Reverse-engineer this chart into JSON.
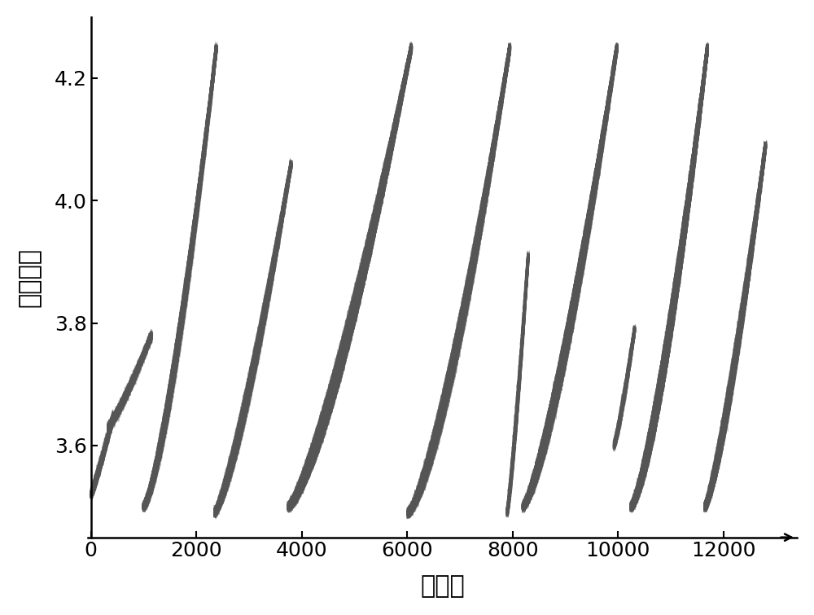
{
  "xlabel": "采样点",
  "ylabel": "充电电压",
  "xlabel_fontsize": 22,
  "ylabel_fontsize": 22,
  "tick_fontsize": 18,
  "xlim": [
    0,
    13000
  ],
  "ylim": [
    3.45,
    4.3
  ],
  "yticks": [
    3.6,
    3.8,
    4.0,
    4.2
  ],
  "xticks": [
    0,
    2000,
    4000,
    6000,
    8000,
    10000,
    12000
  ],
  "background_color": "#ffffff",
  "line_color": "#555555",
  "segments": [
    {
      "x_start": 0,
      "x_end": 430,
      "y_start": 3.52,
      "y_end": 3.65,
      "n": 60,
      "power": 1.1
    },
    {
      "x_start": 330,
      "x_end": 1150,
      "y_start": 3.63,
      "y_end": 3.78,
      "n": 60,
      "power": 1.2
    },
    {
      "x_start": 1000,
      "x_end": 2380,
      "y_start": 3.5,
      "y_end": 4.25,
      "n": 120,
      "power": 1.4
    },
    {
      "x_start": 2350,
      "x_end": 3800,
      "y_start": 3.49,
      "y_end": 4.06,
      "n": 100,
      "power": 1.3
    },
    {
      "x_start": 3750,
      "x_end": 6080,
      "y_start": 3.5,
      "y_end": 4.25,
      "n": 150,
      "power": 1.35
    },
    {
      "x_start": 6020,
      "x_end": 7950,
      "y_start": 3.49,
      "y_end": 4.25,
      "n": 160,
      "power": 1.4
    },
    {
      "x_start": 7900,
      "x_end": 8300,
      "y_start": 3.49,
      "y_end": 3.91,
      "n": 60,
      "power": 1.2
    },
    {
      "x_start": 8200,
      "x_end": 9980,
      "y_start": 3.5,
      "y_end": 4.25,
      "n": 160,
      "power": 1.35
    },
    {
      "x_start": 9930,
      "x_end": 10320,
      "y_start": 3.6,
      "y_end": 3.79,
      "n": 60,
      "power": 1.2
    },
    {
      "x_start": 10250,
      "x_end": 11700,
      "y_start": 3.5,
      "y_end": 4.25,
      "n": 160,
      "power": 1.4
    },
    {
      "x_start": 11650,
      "x_end": 12800,
      "y_start": 3.5,
      "y_end": 4.09,
      "n": 180,
      "power": 1.3
    }
  ]
}
